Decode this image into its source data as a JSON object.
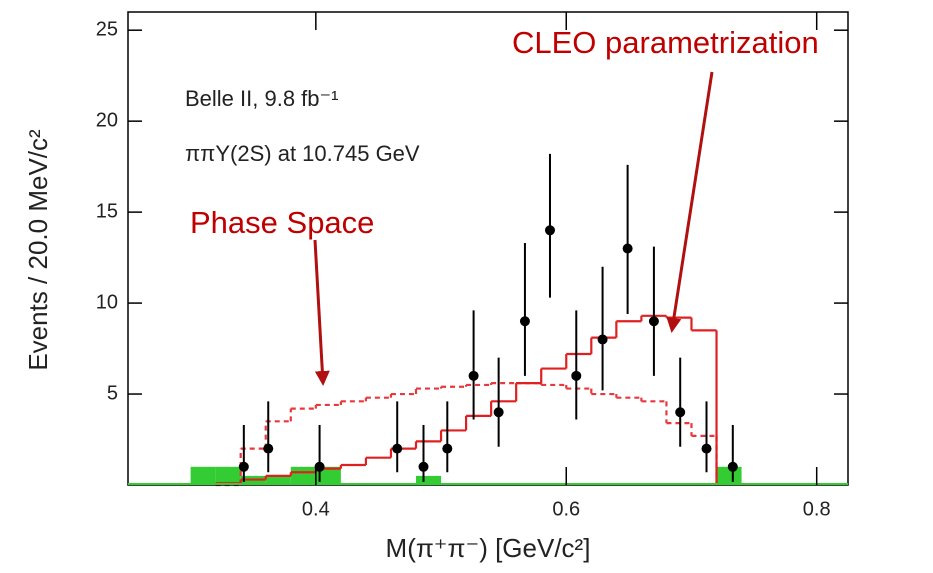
{
  "chart_data": {
    "type": "histogram",
    "xlabel": "M(π⁺π⁻) [GeV/c²]",
    "ylabel": "Events / 20.0 MeV/c²",
    "xlim": [
      0.25,
      0.825
    ],
    "ylim": [
      0,
      26
    ],
    "xticks": [
      0.4,
      0.6,
      0.8
    ],
    "yticks": [
      5,
      10,
      15,
      20,
      25
    ],
    "annotations": [
      "Belle II, 9.8 fb⁻¹",
      "ππΥ(2S) at 10.745 GeV"
    ],
    "points": {
      "color": "#000000",
      "x": [
        0.3425,
        0.362,
        0.403,
        0.465,
        0.486,
        0.505,
        0.526,
        0.546,
        0.567,
        0.587,
        0.608,
        0.629,
        0.649,
        0.67,
        0.691,
        0.712,
        0.733
      ],
      "values": [
        1,
        2,
        1,
        2,
        1,
        2,
        6,
        4,
        9,
        14,
        6,
        8,
        13,
        9,
        4,
        2,
        1
      ],
      "lower": [
        0.17,
        0.7,
        0.17,
        0.7,
        0.17,
        0.7,
        3.6,
        2.1,
        6.0,
        10.3,
        3.6,
        5.2,
        9.4,
        6.0,
        2.1,
        0.7,
        0.17
      ],
      "upper": [
        3.3,
        4.6,
        3.3,
        4.6,
        3.3,
        4.6,
        9.6,
        7.0,
        13.3,
        18.2,
        9.6,
        12.0,
        17.6,
        13.1,
        7.0,
        4.6,
        3.3
      ]
    },
    "series": [
      {
        "name": "Phase Space",
        "color": "#e8383d",
        "label_color": "#c00000",
        "style": "dashed",
        "bins": [
          0.32,
          0.34,
          0.36,
          0.38,
          0.4,
          0.42,
          0.44,
          0.46,
          0.48,
          0.5,
          0.52,
          0.54,
          0.56,
          0.58,
          0.6,
          0.62,
          0.64,
          0.66,
          0.68,
          0.7,
          0.72
        ],
        "values": [
          0,
          2.0,
          3.5,
          4.2,
          4.4,
          4.6,
          4.8,
          5.0,
          5.3,
          5.4,
          5.5,
          5.6,
          5.6,
          5.5,
          5.3,
          5.0,
          4.8,
          4.6,
          3.4,
          2.7
        ]
      },
      {
        "name": "CLEO parametrization",
        "color": "#e02020",
        "label_color": "#c00000",
        "style": "solid",
        "bins": [
          0.32,
          0.34,
          0.36,
          0.38,
          0.4,
          0.42,
          0.44,
          0.46,
          0.48,
          0.5,
          0.52,
          0.54,
          0.56,
          0.58,
          0.6,
          0.62,
          0.64,
          0.66,
          0.68,
          0.7,
          0.72
        ],
        "values": [
          0.1,
          0.3,
          0.5,
          0.7,
          0.9,
          1.1,
          1.5,
          2.0,
          2.4,
          3.0,
          3.8,
          4.6,
          5.6,
          6.4,
          7.2,
          8.1,
          9.0,
          9.3,
          9.2,
          8.5
        ]
      }
    ],
    "background": {
      "color": "#33cc33",
      "bins": [
        0.28,
        0.3,
        0.32,
        0.34,
        0.36,
        0.38,
        0.4,
        0.42,
        0.44,
        0.46,
        0.48,
        0.5,
        0.52,
        0.54,
        0.56,
        0.58,
        0.6,
        0.62,
        0.64,
        0.66,
        0.68,
        0.7,
        0.72,
        0.74
      ],
      "values": [
        0,
        1,
        1,
        0.5,
        0.5,
        1,
        1,
        0,
        0,
        0,
        0.5,
        0,
        0,
        0,
        0,
        0,
        0,
        0,
        0,
        0,
        0,
        0,
        1
      ]
    }
  }
}
